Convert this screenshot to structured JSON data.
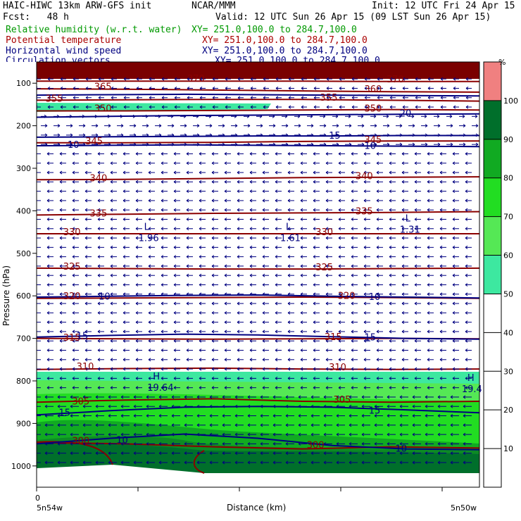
{
  "header": {
    "title_left": "HAIC-HIWC 13km ARW-GFS init",
    "title_mid": "NCAR/MMM",
    "init": "Init: 12 UTC Fri 24 Apr 15",
    "fcst": "Fcst:   48 h",
    "valid": "Valid: 12 UTC Sun 26 Apr 15 (09 LST Sun 26 Apr 15)",
    "fields": [
      {
        "name": "Relative humidity (w.r.t. water)",
        "xy": "XY= 251.0,100.0 to 284.7,100.0",
        "color": "#009900"
      },
      {
        "name": "Potential temperature",
        "xy": "XY= 251.0,100.0 to 284.7,100.0",
        "color": "#aa0000"
      },
      {
        "name": "Horizontal wind speed",
        "xy": "XY= 251.0,100.0 to 284.7,100.0",
        "color": "#000080"
      },
      {
        "name": "Circulation vectors",
        "xy": "XY= 251.0,100.0 to 284.7,100.0",
        "color": "#000080"
      }
    ]
  },
  "chart_data": {
    "type": "heatmap",
    "ylabel": "Pressure (hPa)",
    "xlabel": "Distance (km)",
    "y_ticks": [
      100,
      200,
      300,
      400,
      500,
      600,
      700,
      800,
      900,
      1000
    ],
    "y_range": [
      1050,
      50
    ],
    "x_tick_origin": "0",
    "x_endpoints": [
      "5n54w",
      "5n50w"
    ],
    "colorbar": {
      "unit": "%",
      "levels": [
        10,
        20,
        30,
        40,
        50,
        60,
        70,
        80,
        90,
        100
      ],
      "colors": [
        "#ffffff",
        "#ffffff",
        "#ffffff",
        "#ffffff",
        "#ffffff",
        "#3de8a0",
        "#55e855",
        "#22dd22",
        "#11aa22",
        "#006f2b",
        "#f08080"
      ]
    },
    "theta_labels": [
      {
        "text": "300",
        "x": 0.08,
        "p": 945
      },
      {
        "text": "300",
        "x": 0.61,
        "p": 955
      },
      {
        "text": "305",
        "x": 0.08,
        "p": 852
      },
      {
        "text": "305",
        "x": 0.67,
        "p": 848
      },
      {
        "text": "310",
        "x": 0.09,
        "p": 770
      },
      {
        "text": "310",
        "x": 0.66,
        "p": 772
      },
      {
        "text": "315",
        "x": 0.06,
        "p": 702
      },
      {
        "text": "315",
        "x": 0.65,
        "p": 701
      },
      {
        "text": "320",
        "x": 0.06,
        "p": 605
      },
      {
        "text": "320",
        "x": 0.68,
        "p": 604
      },
      {
        "text": "325",
        "x": 0.06,
        "p": 535
      },
      {
        "text": "325",
        "x": 0.63,
        "p": 537
      },
      {
        "text": "330",
        "x": 0.06,
        "p": 454
      },
      {
        "text": "330",
        "x": 0.63,
        "p": 454
      },
      {
        "text": "335",
        "x": 0.12,
        "p": 410
      },
      {
        "text": "335",
        "x": 0.72,
        "p": 405
      },
      {
        "text": "340",
        "x": 0.12,
        "p": 327
      },
      {
        "text": "340",
        "x": 0.72,
        "p": 322
      },
      {
        "text": "345",
        "x": 0.11,
        "p": 240
      },
      {
        "text": "345",
        "x": 0.74,
        "p": 237
      },
      {
        "text": "350",
        "x": 0.13,
        "p": 163
      },
      {
        "text": "350",
        "x": 0.74,
        "p": 163
      },
      {
        "text": "355",
        "x": 0.02,
        "p": 140
      },
      {
        "text": "355",
        "x": 0.64,
        "p": 138
      },
      {
        "text": "365",
        "x": 0.13,
        "p": 112
      },
      {
        "text": "360",
        "x": 0.74,
        "p": 118
      },
      {
        "text": "370",
        "x": 0.34,
        "p": 93
      },
      {
        "text": "370",
        "x": 0.79,
        "p": 95
      }
    ],
    "wind_labels": [
      {
        "text": "15",
        "x": 0.05,
        "p": 875
      },
      {
        "text": "10",
        "x": 0.18,
        "p": 940
      },
      {
        "text": "15",
        "x": 0.75,
        "p": 870
      },
      {
        "text": "10",
        "x": 0.81,
        "p": 960
      },
      {
        "text": "15",
        "x": 0.09,
        "p": 695
      },
      {
        "text": "15",
        "x": 0.74,
        "p": 698
      },
      {
        "text": "10",
        "x": 0.14,
        "p": 602
      },
      {
        "text": "10",
        "x": 0.75,
        "p": 603
      },
      {
        "text": "10",
        "x": 0.07,
        "p": 245
      },
      {
        "text": "10",
        "x": 0.74,
        "p": 248
      },
      {
        "text": "15",
        "x": 0.66,
        "p": 224
      },
      {
        "text": "20",
        "x": 0.82,
        "p": 172
      }
    ],
    "extrema": [
      {
        "mark": "L",
        "value": "1.96",
        "x": 0.23,
        "p": 455
      },
      {
        "mark": "L",
        "value": "1.61",
        "x": 0.55,
        "p": 455
      },
      {
        "mark": "L",
        "value": "1.31",
        "x": 0.82,
        "p": 435
      },
      {
        "mark": "H",
        "value": "19.64",
        "x": 0.25,
        "p": 807
      },
      {
        "mark": "H",
        "value": "19.4",
        "x": 0.96,
        "p": 810
      }
    ]
  }
}
